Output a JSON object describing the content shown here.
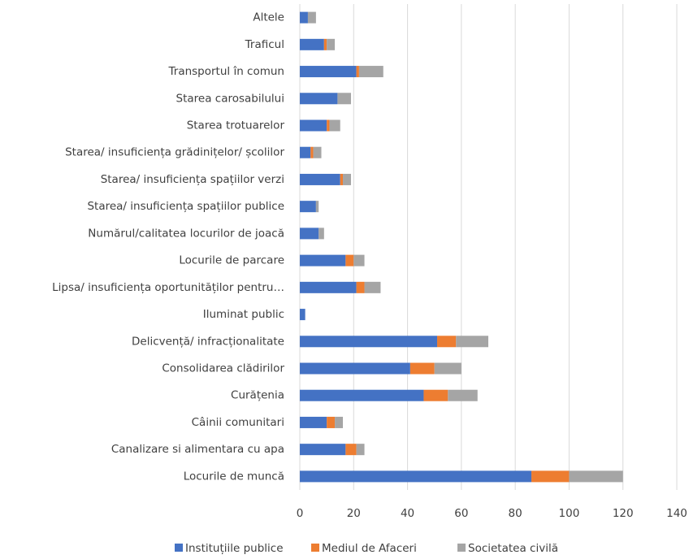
{
  "chart_data": {
    "type": "stacked_bar_horizontal",
    "categories": [
      "Altele",
      "Traficul",
      "Transportul în comun",
      "Starea carosabilului",
      "Starea trotuarelor",
      "Starea/ insuficiența grădinițelor/ școlilor",
      "Starea/ insuficiența spațiilor verzi",
      "Starea/ insuficiența spațiilor publice",
      "Numărul/calitatea locurilor de joacă",
      "Locurile de parcare",
      "Lipsa/ insuficiența oportunităților pentru…",
      "Iluminat public",
      "Delicvență/ infracționalitate",
      "Consolidarea clădirilor",
      "Curățenia",
      "Câinii comunitari",
      "Canalizare si alimentara cu apa",
      "Locurile de muncă"
    ],
    "series": [
      {
        "name": "Instituțiile publice",
        "color": "#4472c4",
        "values": [
          3,
          9,
          21,
          14,
          10,
          4,
          15,
          6,
          7,
          17,
          21,
          2,
          51,
          41,
          46,
          10,
          17,
          86
        ]
      },
      {
        "name": "Mediul de Afaceri",
        "color": "#ed7d31",
        "values": [
          0,
          1,
          1,
          0,
          1,
          1,
          1,
          0,
          0,
          3,
          3,
          0,
          7,
          9,
          9,
          3,
          4,
          14
        ]
      },
      {
        "name": "Societatea civilă",
        "color": "#a5a5a5",
        "values": [
          3,
          3,
          9,
          5,
          4,
          3,
          3,
          1,
          2,
          4,
          6,
          0,
          12,
          10,
          11,
          3,
          3,
          20
        ]
      }
    ],
    "xlim": [
      0,
      140
    ],
    "xticks": [
      0,
      20,
      40,
      60,
      80,
      100,
      120,
      140
    ],
    "grid": true,
    "legend": "bottom"
  }
}
